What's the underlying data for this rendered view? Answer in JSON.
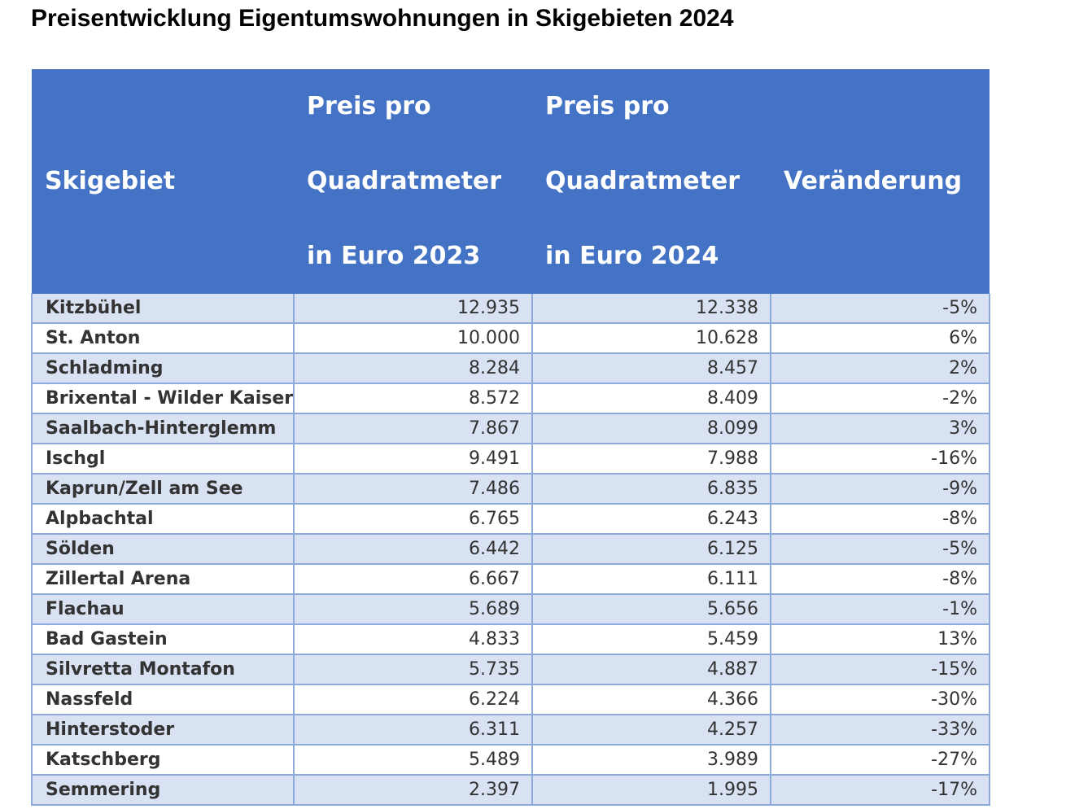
{
  "title": "Preisentwicklung Eigentumswohnungen in Skigebieten 2024",
  "table": {
    "headers": [
      [
        "Skigebiet"
      ],
      [
        "Preis pro",
        "Quadratmeter",
        "in Euro 2023"
      ],
      [
        "Preis pro",
        "Quadratmeter",
        "in Euro 2024"
      ],
      [
        "Veränderung"
      ]
    ],
    "rows": [
      {
        "skigebiet": "Kitzbühel",
        "preis_2023": "12.935",
        "preis_2024": "12.338",
        "veraenderung": "-5%"
      },
      {
        "skigebiet": "St. Anton",
        "preis_2023": "10.000",
        "preis_2024": "10.628",
        "veraenderung": "6%"
      },
      {
        "skigebiet": "Schladming",
        "preis_2023": "8.284",
        "preis_2024": "8.457",
        "veraenderung": "2%"
      },
      {
        "skigebiet": "Brixental - Wilder Kaiser",
        "preis_2023": "8.572",
        "preis_2024": "8.409",
        "veraenderung": "-2%"
      },
      {
        "skigebiet": "Saalbach-Hinterglemm",
        "preis_2023": "7.867",
        "preis_2024": "8.099",
        "veraenderung": "3%"
      },
      {
        "skigebiet": "Ischgl",
        "preis_2023": "9.491",
        "preis_2024": "7.988",
        "veraenderung": "-16%"
      },
      {
        "skigebiet": "Kaprun/Zell am See",
        "preis_2023": "7.486",
        "preis_2024": "6.835",
        "veraenderung": "-9%"
      },
      {
        "skigebiet": "Alpbachtal",
        "preis_2023": "6.765",
        "preis_2024": "6.243",
        "veraenderung": "-8%"
      },
      {
        "skigebiet": "Sölden",
        "preis_2023": "6.442",
        "preis_2024": "6.125",
        "veraenderung": "-5%"
      },
      {
        "skigebiet": "Zillertal Arena",
        "preis_2023": "6.667",
        "preis_2024": "6.111",
        "veraenderung": "-8%"
      },
      {
        "skigebiet": "Flachau",
        "preis_2023": "5.689",
        "preis_2024": "5.656",
        "veraenderung": "-1%"
      },
      {
        "skigebiet": "Bad Gastein",
        "preis_2023": "4.833",
        "preis_2024": "5.459",
        "veraenderung": "13%"
      },
      {
        "skigebiet": "Silvretta Montafon",
        "preis_2023": "5.735",
        "preis_2024": "4.887",
        "veraenderung": "-15%"
      },
      {
        "skigebiet": "Nassfeld",
        "preis_2023": "6.224",
        "preis_2024": "4.366",
        "veraenderung": "-30%"
      },
      {
        "skigebiet": "Hinterstoder",
        "preis_2023": "6.311",
        "preis_2024": "4.257",
        "veraenderung": "-33%"
      },
      {
        "skigebiet": "Katschberg",
        "preis_2023": "5.489",
        "preis_2024": "3.989",
        "veraenderung": "-27%"
      },
      {
        "skigebiet": "Semmering",
        "preis_2023": "2.397",
        "preis_2024": "1.995",
        "veraenderung": "-17%"
      }
    ]
  },
  "colors": {
    "header_background": "#4472c4",
    "header_text": "#ffffff",
    "row_band": "#d9e2f3",
    "row_plain": "#ffffff",
    "grid_line": "#8eaadb",
    "body_text": "#333333"
  }
}
